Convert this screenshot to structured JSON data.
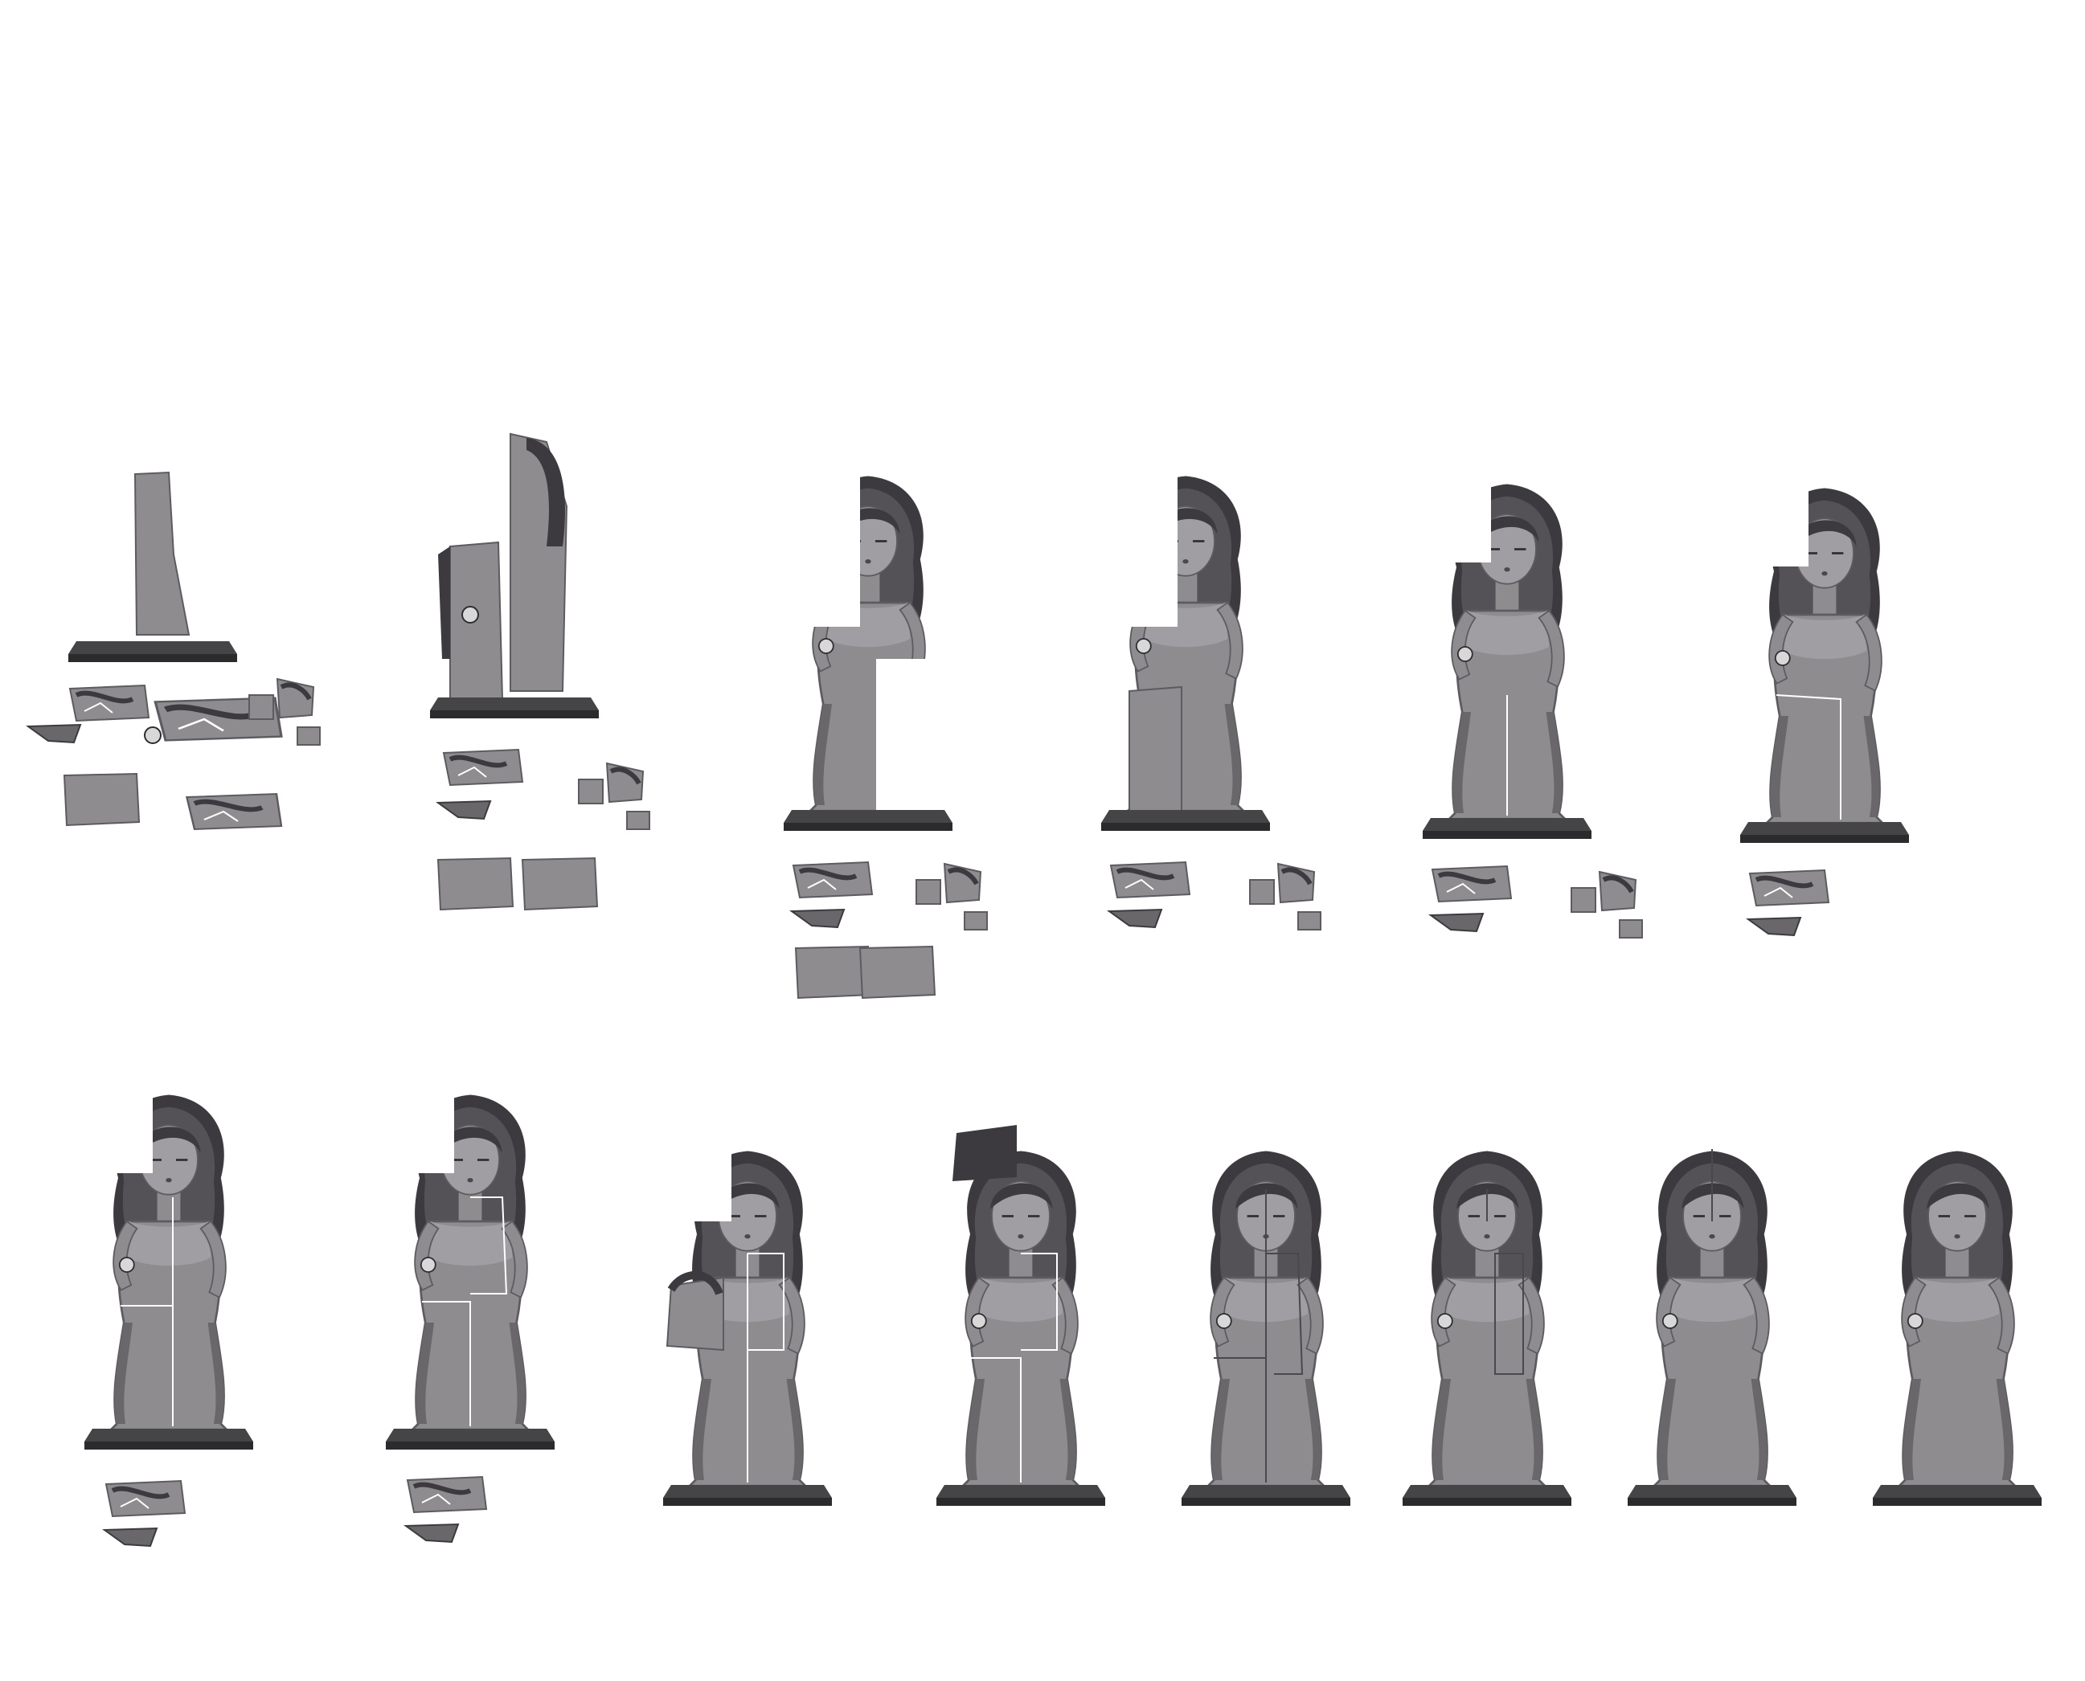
{
  "sprite_sheet": {
    "background": "#ffffff",
    "colors": {
      "stone": "#8f8c90",
      "stone_light": "#a19ea3",
      "stone_shadow": "#6a676b",
      "hair_dark": "#3c3a3e",
      "hair_mid": "#555257",
      "base_dark": "#2b2a2d",
      "base_top": "#454447",
      "crack": "#ffffff",
      "outline": "#2e2d30",
      "gem": "#d8d8d8"
    },
    "frames": [
      {
        "frame": 1,
        "stage": "broken",
        "assembled_parts": [
          "lower-body"
        ]
      },
      {
        "frame": 2,
        "stage": "broken",
        "assembled_parts": [
          "head",
          "upper-body"
        ]
      },
      {
        "frame": 3,
        "stage": "partial",
        "assembled_parts": [
          "head",
          "upper-body",
          "lower-body"
        ]
      },
      {
        "frame": 4,
        "stage": "partial",
        "assembled_parts": [
          "head",
          "upper-body",
          "lower-body",
          "left-slab"
        ]
      },
      {
        "frame": 5,
        "stage": "partial",
        "assembled_parts": [
          "head",
          "upper-body",
          "lower-body",
          "skirt"
        ]
      },
      {
        "frame": 6,
        "stage": "partial",
        "assembled_parts": [
          "head",
          "upper-body",
          "lower-body",
          "skirt",
          "arm"
        ]
      },
      {
        "frame": 7,
        "stage": "nearly-complete",
        "assembled_parts": [
          "head",
          "body",
          "skirt",
          "arm"
        ]
      },
      {
        "frame": 8,
        "stage": "nearly-complete",
        "assembled_parts": [
          "head",
          "body",
          "skirt",
          "arm"
        ]
      },
      {
        "frame": 9,
        "stage": "rebuilding-face",
        "assembled_parts": [
          "body",
          "half-face"
        ]
      },
      {
        "frame": 10,
        "stage": "rebuilding-face",
        "assembled_parts": [
          "body",
          "half-face",
          "hair"
        ]
      },
      {
        "frame": 11,
        "stage": "complete-cracked",
        "assembled_parts": [
          "full-statue"
        ]
      },
      {
        "frame": 12,
        "stage": "complete-cracked",
        "assembled_parts": [
          "full-statue"
        ]
      },
      {
        "frame": 13,
        "stage": "complete-cracked",
        "assembled_parts": [
          "full-statue"
        ]
      },
      {
        "frame": 14,
        "stage": "complete",
        "assembled_parts": [
          "full-statue"
        ]
      }
    ]
  }
}
